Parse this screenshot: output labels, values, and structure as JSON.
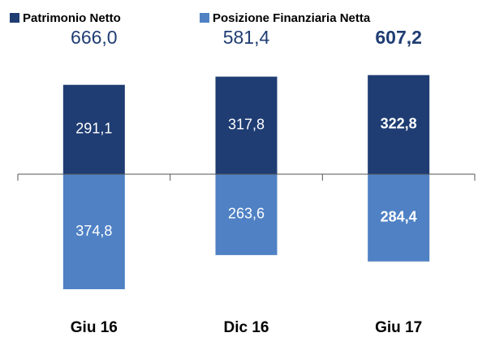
{
  "chart_data": {
    "type": "bar",
    "categories": [
      "Giu 16",
      "Dic 16",
      "Giu 17"
    ],
    "series": [
      {
        "name": "Patrimonio Netto",
        "color": "#1f3d73",
        "values": [
          291.1,
          317.8,
          322.8
        ],
        "value_labels": [
          "291,1",
          "317,8",
          "322,8"
        ]
      },
      {
        "name": "Posizione Finanziaria Netta",
        "color": "#4f81c4",
        "values": [
          374.8,
          263.6,
          284.4
        ],
        "value_labels": [
          "374,8",
          "263,6",
          "284,4"
        ]
      }
    ],
    "totals": [
      666.0,
      581.4,
      607.2
    ],
    "total_labels": [
      "666,0",
      "581,4",
      "607,2"
    ],
    "highlight_index": 2,
    "legend": "top"
  }
}
